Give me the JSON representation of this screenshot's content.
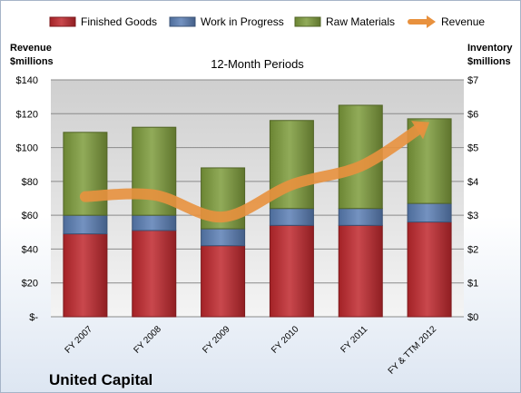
{
  "chart_data": {
    "type": "bar",
    "stacked": true,
    "title": "12-Month Periods",
    "company": "United Capital",
    "categories": [
      "FY 2007",
      "FY 2008",
      "FY 2009",
      "FY 2010",
      "FY 2011",
      "FY & TTM 2012"
    ],
    "series": [
      {
        "name": "Finished Goods",
        "axis": "right",
        "color": "#c0282d",
        "values": [
          2.45,
          2.55,
          2.1,
          2.7,
          2.7,
          2.8
        ]
      },
      {
        "name": "Work in Progress",
        "axis": "right",
        "color": "#5b7fb5",
        "values": [
          0.55,
          0.45,
          0.5,
          0.5,
          0.5,
          0.55
        ]
      },
      {
        "name": "Raw Materials",
        "axis": "right",
        "color": "#7e9c3c",
        "values": [
          2.45,
          2.6,
          1.8,
          2.6,
          3.05,
          2.5
        ]
      },
      {
        "name": "Revenue",
        "axis": "left",
        "type": "line",
        "color": "#e8913e",
        "values": [
          71,
          72,
          59,
          78,
          89,
          115
        ]
      }
    ],
    "ylabel_left": [
      "Revenue",
      "$millions"
    ],
    "ylabel_right": [
      "Inventory",
      "$millions"
    ],
    "yticks_left": [
      "$-",
      "$20",
      "$40",
      "$60",
      "$80",
      "$100",
      "$120",
      "$140"
    ],
    "yticks_right": [
      "$0",
      "$1",
      "$2",
      "$3",
      "$4",
      "$5",
      "$6",
      "$7"
    ],
    "ylim_left": [
      0,
      140
    ],
    "ylim_right": [
      0,
      7
    ],
    "grid": true,
    "legend_position": "top"
  }
}
